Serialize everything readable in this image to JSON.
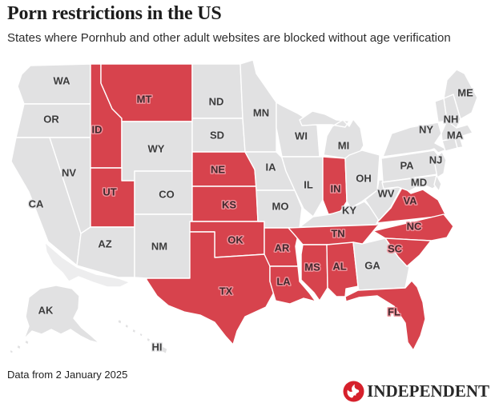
{
  "header": {
    "title": "Porn restrictions in the US",
    "subtitle": "States where Pornhub and other adult websites are blocked without age verification"
  },
  "footer": {
    "source": "Data from 2 January 2025",
    "brand": "INDEPENDENT"
  },
  "colors": {
    "restricted": "#d7434d",
    "not_restricted": "#e1e1e2",
    "neighbor_land": "#ededee",
    "state_border": "#ffffff",
    "label": "#3c3c3c",
    "restricted_label": "#41282d",
    "restricted_label_halo": "#ee929b",
    "brand_red": "#d6202b",
    "wordmark": "#282828"
  },
  "chart_data": {
    "type": "choropleth",
    "title": "Porn restrictions in the US",
    "subtitle": "States where Pornhub and other adult websites are blocked without age verification",
    "region": "United States",
    "status_colors": {
      "restricted": "#d7434d",
      "not_restricted": "#e1e1e2"
    },
    "restricted_states": [
      "MT",
      "ID",
      "UT",
      "NE",
      "KS",
      "OK",
      "TX",
      "IN",
      "TN",
      "AR",
      "LA",
      "MS",
      "AL",
      "VA",
      "NC",
      "SC",
      "FL"
    ],
    "states": [
      {
        "code": "WA",
        "restricted": false,
        "labeled": true
      },
      {
        "code": "OR",
        "restricted": false,
        "labeled": true
      },
      {
        "code": "CA",
        "restricted": false,
        "labeled": true
      },
      {
        "code": "NV",
        "restricted": false,
        "labeled": true
      },
      {
        "code": "ID",
        "restricted": true,
        "labeled": true
      },
      {
        "code": "MT",
        "restricted": true,
        "labeled": true
      },
      {
        "code": "WY",
        "restricted": false,
        "labeled": true
      },
      {
        "code": "UT",
        "restricted": true,
        "labeled": true
      },
      {
        "code": "CO",
        "restricted": false,
        "labeled": true
      },
      {
        "code": "AZ",
        "restricted": false,
        "labeled": true
      },
      {
        "code": "NM",
        "restricted": false,
        "labeled": true
      },
      {
        "code": "ND",
        "restricted": false,
        "labeled": true
      },
      {
        "code": "SD",
        "restricted": false,
        "labeled": true
      },
      {
        "code": "NE",
        "restricted": true,
        "labeled": true
      },
      {
        "code": "KS",
        "restricted": true,
        "labeled": true
      },
      {
        "code": "OK",
        "restricted": true,
        "labeled": true
      },
      {
        "code": "TX",
        "restricted": true,
        "labeled": true
      },
      {
        "code": "MN",
        "restricted": false,
        "labeled": true
      },
      {
        "code": "IA",
        "restricted": false,
        "labeled": true
      },
      {
        "code": "MO",
        "restricted": false,
        "labeled": true
      },
      {
        "code": "AR",
        "restricted": true,
        "labeled": true
      },
      {
        "code": "LA",
        "restricted": true,
        "labeled": true
      },
      {
        "code": "WI",
        "restricted": false,
        "labeled": true
      },
      {
        "code": "IL",
        "restricted": false,
        "labeled": true
      },
      {
        "code": "IN",
        "restricted": true,
        "labeled": true
      },
      {
        "code": "MI",
        "restricted": false,
        "labeled": true
      },
      {
        "code": "OH",
        "restricted": false,
        "labeled": true
      },
      {
        "code": "KY",
        "restricted": false,
        "labeled": true
      },
      {
        "code": "TN",
        "restricted": true,
        "labeled": true
      },
      {
        "code": "MS",
        "restricted": true,
        "labeled": true
      },
      {
        "code": "AL",
        "restricted": true,
        "labeled": true
      },
      {
        "code": "GA",
        "restricted": false,
        "labeled": true
      },
      {
        "code": "WV",
        "restricted": false,
        "labeled": true
      },
      {
        "code": "VA",
        "restricted": true,
        "labeled": true
      },
      {
        "code": "NC",
        "restricted": true,
        "labeled": true
      },
      {
        "code": "SC",
        "restricted": true,
        "labeled": true
      },
      {
        "code": "FL",
        "restricted": true,
        "labeled": true
      },
      {
        "code": "PA",
        "restricted": false,
        "labeled": true
      },
      {
        "code": "NY",
        "restricted": false,
        "labeled": true
      },
      {
        "code": "NJ",
        "restricted": false,
        "labeled": true
      },
      {
        "code": "MD",
        "restricted": false,
        "labeled": true
      },
      {
        "code": "MA",
        "restricted": false,
        "labeled": true
      },
      {
        "code": "NH",
        "restricted": false,
        "labeled": true
      },
      {
        "code": "VT",
        "restricted": false,
        "labeled": false
      },
      {
        "code": "CT",
        "restricted": false,
        "labeled": false
      },
      {
        "code": "RI",
        "restricted": false,
        "labeled": false
      },
      {
        "code": "DE",
        "restricted": false,
        "labeled": false
      },
      {
        "code": "ME",
        "restricted": false,
        "labeled": true
      },
      {
        "code": "AK",
        "restricted": false,
        "labeled": true
      },
      {
        "code": "HI",
        "restricted": false,
        "labeled": true
      }
    ]
  }
}
